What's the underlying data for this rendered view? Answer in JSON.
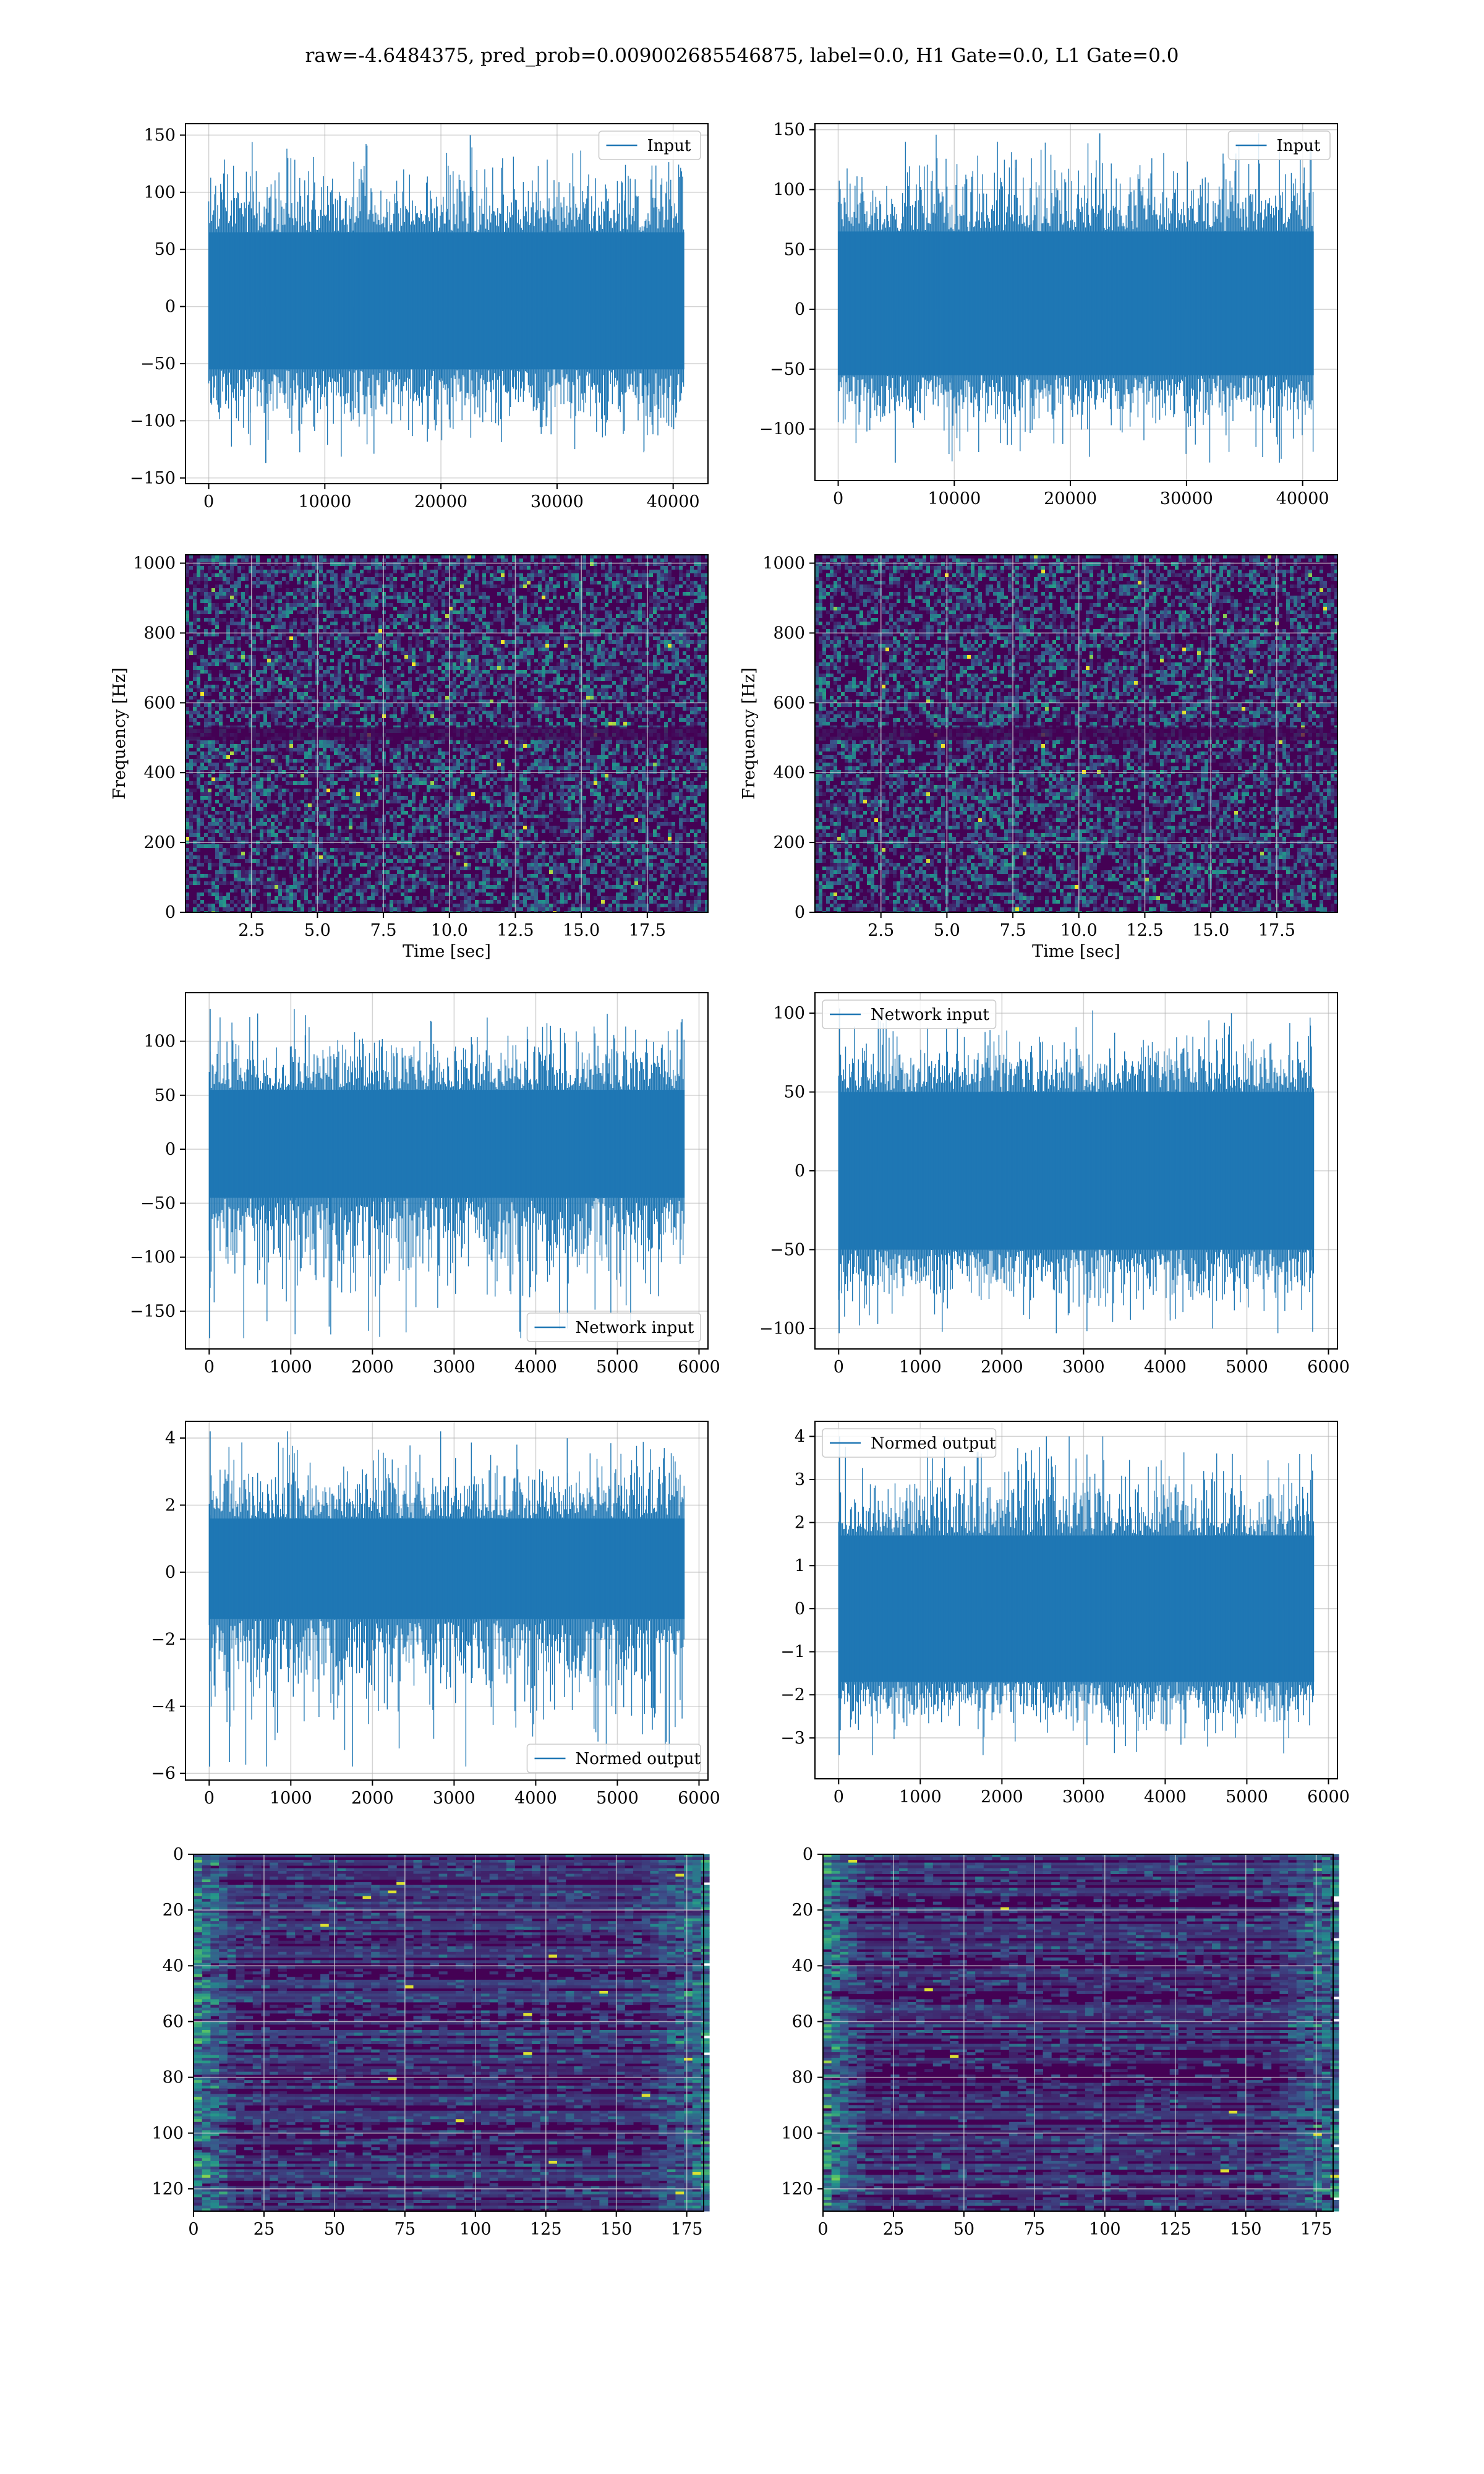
{
  "figure": {
    "title": "raw=-4.6484375, pred_prob=0.009002685546875, label=0.0, H1 Gate=0.0, L1 Gate=0.0"
  },
  "colors": {
    "line": "#1f77b4",
    "grid": "#b0b0b0",
    "frame": "#000000",
    "viridis": [
      "#440154",
      "#3b528b",
      "#21918c",
      "#5ec962",
      "#fde725"
    ]
  },
  "chart_data": [
    {
      "id": "h1_input",
      "type": "line",
      "series": [
        {
          "name": "Input"
        }
      ],
      "xlim": [
        -2000,
        43000
      ],
      "ylim": [
        -155,
        160
      ],
      "xticks": [
        0,
        10000,
        20000,
        30000,
        40000
      ],
      "xtick_labels": [
        "0",
        "10000",
        "20000",
        "30000",
        "40000"
      ],
      "yticks": [
        -150,
        -100,
        -50,
        0,
        50,
        100,
        150
      ],
      "ytick_labels": [
        "−150",
        "−100",
        "−50",
        "0",
        "50",
        "100",
        "150"
      ],
      "legend": "upper right",
      "grid": true,
      "xlabel": "",
      "ylabel": "",
      "signal": {
        "n_samples": 40960,
        "body_lo": -55,
        "body_hi": 65,
        "peak_max": 150,
        "peak_min": -137
      }
    },
    {
      "id": "l1_input",
      "type": "line",
      "series": [
        {
          "name": "Input"
        }
      ],
      "xlim": [
        -2000,
        43000
      ],
      "ylim": [
        -143,
        155
      ],
      "xticks": [
        0,
        10000,
        20000,
        30000,
        40000
      ],
      "xtick_labels": [
        "0",
        "10000",
        "20000",
        "30000",
        "40000"
      ],
      "yticks": [
        -100,
        -50,
        0,
        50,
        100,
        150
      ],
      "ytick_labels": [
        "−100",
        "−50",
        "0",
        "50",
        "100",
        "150"
      ],
      "legend": "upper right",
      "grid": true,
      "xlabel": "",
      "ylabel": "",
      "signal": {
        "n_samples": 40960,
        "body_lo": -55,
        "body_hi": 65,
        "peak_max": 147,
        "peak_min": -128
      }
    },
    {
      "id": "h1_spectrogram",
      "type": "heatmap",
      "xlim": [
        0,
        19.8
      ],
      "ylim": [
        0,
        1024
      ],
      "xticks": [
        2.5,
        5.0,
        7.5,
        10.0,
        12.5,
        15.0,
        17.5
      ],
      "xtick_labels": [
        "2.5",
        "5.0",
        "7.5",
        "10.0",
        "12.5",
        "15.0",
        "17.5"
      ],
      "yticks": [
        0,
        200,
        400,
        600,
        800,
        1000
      ],
      "ytick_labels": [
        "0",
        "200",
        "400",
        "600",
        "800",
        "1000"
      ],
      "xlabel": "Time [sec]",
      "ylabel": "Frequency [Hz]",
      "grid": true,
      "colormap": "viridis"
    },
    {
      "id": "l1_spectrogram",
      "type": "heatmap",
      "xlim": [
        0,
        19.8
      ],
      "ylim": [
        0,
        1024
      ],
      "xticks": [
        2.5,
        5.0,
        7.5,
        10.0,
        12.5,
        15.0,
        17.5
      ],
      "xtick_labels": [
        "2.5",
        "5.0",
        "7.5",
        "10.0",
        "12.5",
        "15.0",
        "17.5"
      ],
      "yticks": [
        0,
        200,
        400,
        600,
        800,
        1000
      ],
      "ytick_labels": [
        "0",
        "200",
        "400",
        "600",
        "800",
        "1000"
      ],
      "xlabel": "Time [sec]",
      "ylabel": "Frequency [Hz]",
      "grid": true,
      "colormap": "viridis"
    },
    {
      "id": "h1_network_input",
      "type": "line",
      "series": [
        {
          "name": "Network input"
        }
      ],
      "xlim": [
        -290,
        6110
      ],
      "ylim": [
        -185,
        145
      ],
      "xticks": [
        0,
        1000,
        2000,
        3000,
        4000,
        5000,
        6000
      ],
      "xtick_labels": [
        "0",
        "1000",
        "2000",
        "3000",
        "4000",
        "5000",
        "6000"
      ],
      "yticks": [
        -150,
        -100,
        -50,
        0,
        50,
        100
      ],
      "ytick_labels": [
        "−150",
        "−100",
        "−50",
        "0",
        "50",
        "100"
      ],
      "legend": "lower right",
      "grid": true,
      "xlabel": "",
      "ylabel": "",
      "signal": {
        "n_samples": 5824,
        "body_lo": -45,
        "body_hi": 55,
        "peak_max": 130,
        "peak_min": -175
      }
    },
    {
      "id": "l1_network_input",
      "type": "line",
      "series": [
        {
          "name": "Network input"
        }
      ],
      "xlim": [
        -290,
        6110
      ],
      "ylim": [
        -113,
        113
      ],
      "xticks": [
        0,
        1000,
        2000,
        3000,
        4000,
        5000,
        6000
      ],
      "xtick_labels": [
        "0",
        "1000",
        "2000",
        "3000",
        "4000",
        "5000",
        "6000"
      ],
      "yticks": [
        -100,
        -50,
        0,
        50,
        100
      ],
      "ytick_labels": [
        "−100",
        "−50",
        "0",
        "50",
        "100"
      ],
      "legend": "upper left",
      "grid": true,
      "xlabel": "",
      "ylabel": "",
      "signal": {
        "n_samples": 5824,
        "body_lo": -50,
        "body_hi": 50,
        "peak_max": 103,
        "peak_min": -103
      }
    },
    {
      "id": "h1_normed_output",
      "type": "line",
      "series": [
        {
          "name": "Normed output"
        }
      ],
      "xlim": [
        -290,
        6110
      ],
      "ylim": [
        -6.2,
        4.5
      ],
      "xticks": [
        0,
        1000,
        2000,
        3000,
        4000,
        5000,
        6000
      ],
      "xtick_labels": [
        "0",
        "1000",
        "2000",
        "3000",
        "4000",
        "5000",
        "6000"
      ],
      "yticks": [
        -6,
        -4,
        -2,
        0,
        2,
        4
      ],
      "ytick_labels": [
        "−6",
        "−4",
        "−2",
        "0",
        "2",
        "4"
      ],
      "legend": "lower right",
      "grid": true,
      "xlabel": "",
      "ylabel": "",
      "signal": {
        "n_samples": 5824,
        "body_lo": -1.4,
        "body_hi": 1.6,
        "peak_max": 4.2,
        "peak_min": -5.8
      }
    },
    {
      "id": "l1_normed_output",
      "type": "line",
      "series": [
        {
          "name": "Normed output"
        }
      ],
      "xlim": [
        -290,
        6110
      ],
      "ylim": [
        -3.95,
        4.35
      ],
      "xticks": [
        0,
        1000,
        2000,
        3000,
        4000,
        5000,
        6000
      ],
      "xtick_labels": [
        "0",
        "1000",
        "2000",
        "3000",
        "4000",
        "5000",
        "6000"
      ],
      "yticks": [
        -3,
        -2,
        -1,
        0,
        1,
        2,
        3,
        4
      ],
      "ytick_labels": [
        "−3",
        "−2",
        "−1",
        "0",
        "1",
        "2",
        "3",
        "4"
      ],
      "legend": "upper left",
      "grid": true,
      "xlabel": "",
      "ylabel": "",
      "signal": {
        "n_samples": 5824,
        "body_lo": -1.7,
        "body_hi": 1.7,
        "peak_max": 4.0,
        "peak_min": -3.4
      }
    },
    {
      "id": "h1_qtransform",
      "type": "heatmap",
      "xlim": [
        0,
        181
      ],
      "ylim": [
        128,
        0
      ],
      "invert_y": true,
      "xticks": [
        0,
        25,
        50,
        75,
        100,
        125,
        150,
        175
      ],
      "xtick_labels": [
        "0",
        "25",
        "50",
        "75",
        "100",
        "125",
        "150",
        "175"
      ],
      "yticks": [
        0,
        20,
        40,
        60,
        80,
        100,
        120
      ],
      "ytick_labels": [
        "0",
        "20",
        "40",
        "60",
        "80",
        "100",
        "120"
      ],
      "xlabel": "",
      "ylabel": "",
      "grid": true,
      "colormap": "viridis"
    },
    {
      "id": "l1_qtransform",
      "type": "heatmap",
      "xlim": [
        0,
        181
      ],
      "ylim": [
        128,
        0
      ],
      "invert_y": true,
      "xticks": [
        0,
        25,
        50,
        75,
        100,
        125,
        150,
        175
      ],
      "xtick_labels": [
        "0",
        "25",
        "50",
        "75",
        "100",
        "125",
        "150",
        "175"
      ],
      "yticks": [
        0,
        20,
        40,
        60,
        80,
        100,
        120
      ],
      "ytick_labels": [
        "0",
        "20",
        "40",
        "60",
        "80",
        "100",
        "120"
      ],
      "xlabel": "",
      "ylabel": "",
      "grid": true,
      "colormap": "viridis"
    }
  ]
}
